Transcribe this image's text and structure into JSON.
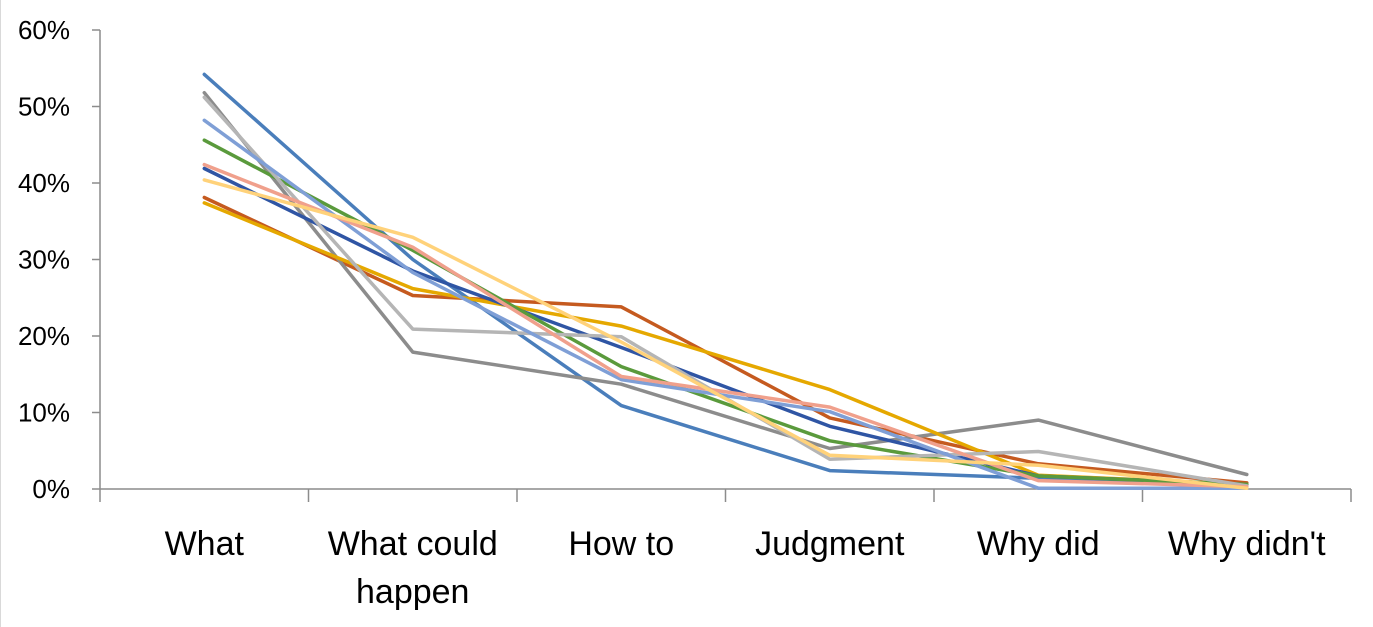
{
  "chart_data": {
    "type": "line",
    "categories": [
      [
        "What"
      ],
      [
        "What could",
        "happen"
      ],
      [
        "How to"
      ],
      [
        "Judgment"
      ],
      [
        "Why did"
      ],
      [
        "Why didn't"
      ]
    ],
    "ylim": [
      0,
      0.6
    ],
    "yticks": [
      0,
      0.1,
      0.2,
      0.3,
      0.4,
      0.5,
      0.6
    ],
    "ytick_labels": [
      "0%",
      "10%",
      "20%",
      "30%",
      "40%",
      "50%",
      "60%"
    ],
    "grid": false,
    "legend": "none",
    "series": [
      {
        "color": "#4a7ebb",
        "values": [
          0.542,
          0.3,
          0.109,
          0.024,
          0.014,
          0.006
        ]
      },
      {
        "color": "#c55a1f",
        "values": [
          0.381,
          0.253,
          0.238,
          0.093,
          0.033,
          0.008
        ]
      },
      {
        "color": "#8c8c8c",
        "values": [
          0.518,
          0.179,
          0.137,
          0.053,
          0.09,
          0.019
        ]
      },
      {
        "color": "#e5a800",
        "values": [
          0.374,
          0.262,
          0.213,
          0.13,
          0.018,
          0.006
        ]
      },
      {
        "color": "#2f55a4",
        "values": [
          0.419,
          0.285,
          0.185,
          0.082,
          0.017,
          0.006
        ]
      },
      {
        "color": "#5a9a3c",
        "values": [
          0.456,
          0.312,
          0.16,
          0.063,
          0.017,
          0.006
        ]
      },
      {
        "color": "#b5b5b5",
        "values": [
          0.512,
          0.209,
          0.199,
          0.039,
          0.049,
          0.004
        ]
      },
      {
        "color": "#7f9fd6",
        "values": [
          0.482,
          0.283,
          0.143,
          0.101,
          0.001,
          0.001
        ]
      },
      {
        "color": "#f0a08c",
        "values": [
          0.424,
          0.316,
          0.147,
          0.107,
          0.011,
          0.003
        ]
      },
      {
        "color": "#ffd27a",
        "values": [
          0.404,
          0.329,
          0.192,
          0.044,
          0.031,
          0.001
        ]
      }
    ]
  }
}
